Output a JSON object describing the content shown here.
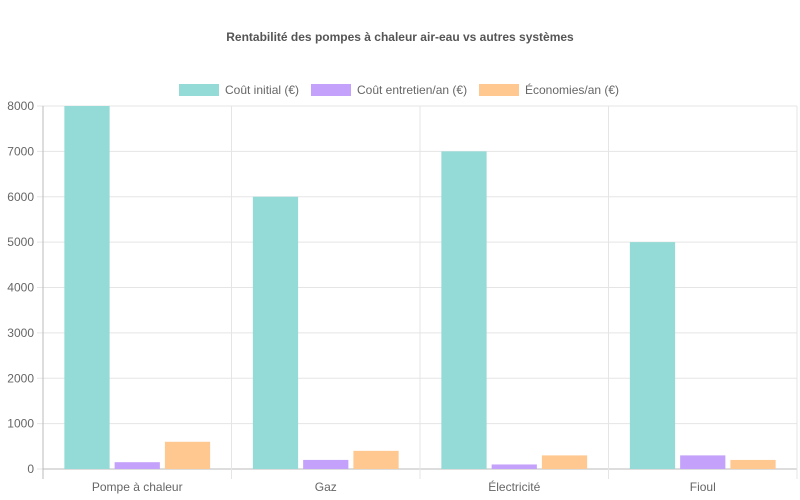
{
  "chart_data": {
    "type": "bar",
    "title": "Rentabilité des pompes à chaleur air-eau vs autres systèmes",
    "categories": [
      "Pompe à chaleur",
      "Gaz",
      "Électricité",
      "Fioul"
    ],
    "series": [
      {
        "name": "Coût initial (€)",
        "values": [
          8000,
          6000,
          7000,
          5000
        ],
        "color": "#94dad6"
      },
      {
        "name": "Coût entretien/an (€)",
        "values": [
          150,
          200,
          100,
          300
        ],
        "color": "#c4a2fb"
      },
      {
        "name": "Économies/an (€)",
        "values": [
          600,
          400,
          300,
          200
        ],
        "color": "#fec890"
      }
    ],
    "ylim": [
      0,
      8000
    ],
    "yticks": [
      0,
      1000,
      2000,
      3000,
      4000,
      5000,
      6000,
      7000,
      8000
    ],
    "grid": true,
    "legend": "top"
  }
}
